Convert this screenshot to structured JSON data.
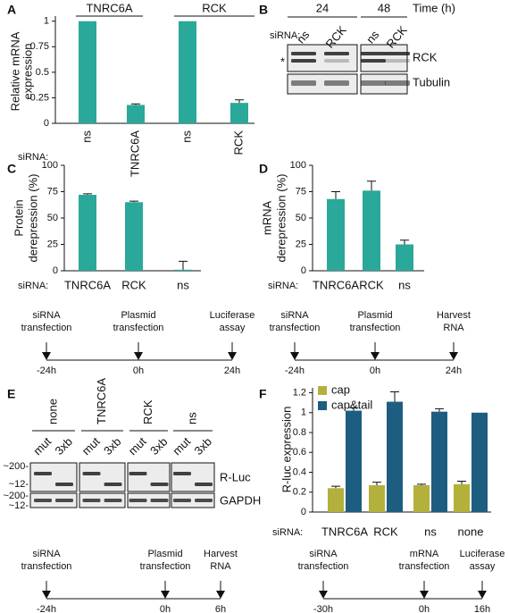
{
  "panel_labels": [
    "A",
    "B",
    "C",
    "D",
    "E",
    "F"
  ],
  "chart_data": [
    {
      "type": "bar",
      "ylabel": [
        "Relative mRNA",
        "expression"
      ],
      "x_prefix": "siRNA:",
      "groups": [
        "TNRC6A",
        "RCK"
      ],
      "categories": [
        "ns",
        "TNRC6A",
        "ns",
        "RCK"
      ],
      "values": [
        1,
        0.18,
        1,
        0.2
      ],
      "errors": [
        null,
        0.01,
        null,
        0.03
      ],
      "color": "#2aa89a",
      "ylim": [
        0,
        1.05
      ],
      "yticks": [
        0,
        0.25,
        0.5,
        0.75,
        1
      ]
    },
    {
      "type": "bar",
      "ylabel": [
        "Protein",
        "derepression (%)"
      ],
      "x_prefix": "siRNA:",
      "categories": [
        "TNRC6A",
        "RCK",
        "ns"
      ],
      "values": [
        72,
        65,
        1
      ],
      "errors": [
        1,
        1,
        8
      ],
      "color": "#2aa89a",
      "ylim": [
        0,
        100
      ],
      "yticks": [
        0,
        25,
        50,
        75,
        100
      ]
    },
    {
      "type": "bar",
      "ylabel": [
        "mRNA",
        "derepression (%)"
      ],
      "x_prefix": "siRNA:",
      "categories": [
        "TNRC6A",
        "RCK",
        "ns"
      ],
      "values": [
        68,
        76,
        25
      ],
      "errors": [
        7,
        9,
        4
      ],
      "color": "#2aa89a",
      "ylim": [
        0,
        100
      ],
      "yticks": [
        0,
        25,
        50,
        75,
        100
      ]
    },
    {
      "type": "bar",
      "ylabel": [
        "R-luc expression"
      ],
      "x_prefix": "siRNA:",
      "categories": [
        "TNRC6A",
        "RCK",
        "ns",
        "none"
      ],
      "series": [
        {
          "name": "cap",
          "color": "#b3b13c",
          "values": [
            0.24,
            0.27,
            0.27,
            0.28
          ],
          "errors": [
            0.02,
            0.03,
            0.01,
            0.03
          ]
        },
        {
          "name": "cap&tail",
          "color": "#1d5d80",
          "values": [
            1.02,
            1.11,
            1.01,
            1.0
          ],
          "errors": [
            0.03,
            0.1,
            0.03,
            null
          ]
        }
      ],
      "ylim": [
        0,
        1.25
      ],
      "yticks": [
        0,
        0.2,
        0.4,
        0.6,
        0.8,
        1,
        1.2
      ],
      "legend": "upper-left"
    }
  ],
  "blot_b": {
    "time_label": "Time (h)",
    "times": [
      "24",
      "48"
    ],
    "prefix": "siRNA:",
    "lanes": [
      "ns",
      "RCK",
      "ns",
      "RCK"
    ],
    "star": "*",
    "rows": [
      "RCK",
      "Tubulin"
    ]
  },
  "blot_e": {
    "groups": [
      "none",
      "TNRC6A",
      "RCK",
      "ns"
    ],
    "lanes": [
      "mut",
      "3xb"
    ],
    "markers": [
      "~200-",
      "~12-",
      "~200-",
      "~12-"
    ],
    "rows": [
      "R-Luc",
      "GAPDH"
    ]
  },
  "timelines": [
    {
      "steps": [
        {
          "lines": [
            "siRNA",
            "transfection"
          ],
          "time": "-24h"
        },
        {
          "lines": [
            "Plasmid",
            "transfection"
          ],
          "time": "0h"
        },
        {
          "lines": [
            "Luciferase",
            "assay"
          ],
          "time": "24h"
        }
      ]
    },
    {
      "steps": [
        {
          "lines": [
            "siRNA",
            "transfection"
          ],
          "time": "-24h"
        },
        {
          "lines": [
            "Plasmid",
            "transfection"
          ],
          "time": "0h"
        },
        {
          "lines": [
            "Harvest",
            "RNA"
          ],
          "time": "24h"
        }
      ]
    },
    {
      "steps": [
        {
          "lines": [
            "siRNA",
            "transfection"
          ],
          "time": "-24h"
        },
        {
          "lines": [
            "Plasmid",
            "transfection"
          ],
          "time": "0h"
        },
        {
          "lines": [
            "Harvest",
            "RNA"
          ],
          "time": "6h"
        }
      ]
    },
    {
      "steps": [
        {
          "lines": [
            "siRNA",
            "transfection"
          ],
          "time": "-30h"
        },
        {
          "lines": [
            "mRNA",
            "transfection"
          ],
          "time": "0h"
        },
        {
          "lines": [
            "Luciferase",
            "assay"
          ],
          "time": "16h"
        }
      ]
    }
  ]
}
